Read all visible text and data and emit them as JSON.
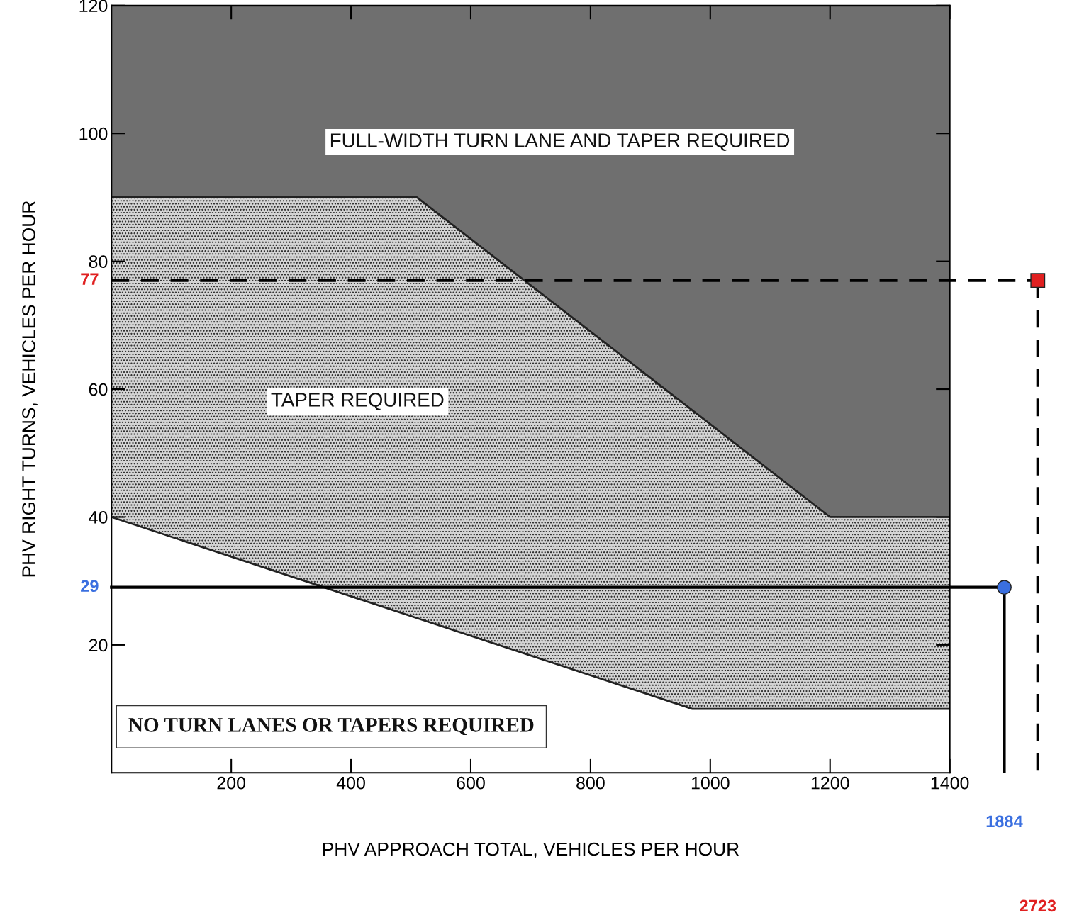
{
  "chart_data": {
    "type": "area",
    "stacked": true,
    "x": [
      0,
      510,
      970,
      1200,
      1400
    ],
    "series": [
      {
        "color": "#ffffff",
        "values": [
          40,
          24.2,
          10,
          10,
          10
        ]
      },
      {
        "color": "#d4d4d4",
        "values": [
          50,
          65.8,
          46.7,
          30,
          30
        ]
      },
      {
        "color": "#6f6f6f",
        "values": [
          30,
          30,
          63.3,
          80,
          80
        ]
      }
    ],
    "xlabel": "PHV APPROACH TOTAL, VEHICLES PER HOUR",
    "ylabel": "PHV RIGHT TURNS, VEHICLES PER HOUR",
    "xlim": [
      0,
      1400
    ],
    "xticks": [
      200,
      400,
      600,
      800,
      1000,
      1200,
      1400
    ],
    "ylim": [
      0,
      120
    ],
    "yticks": [
      20,
      40,
      60,
      80,
      100,
      120
    ],
    "grid": false,
    "ref_lines": [
      {
        "axis": "y",
        "value": 29,
        "label": "29",
        "color": "#000000",
        "line_style": "solid"
      },
      {
        "axis": "y",
        "value": 77,
        "label": "77",
        "color": "#000000",
        "line_style": "dashed"
      }
    ],
    "annotations": [
      "FULL-WIDTH TURN LANE AND TAPER REQUIRED",
      "TAPER REQUIRED",
      "NO TURN LANES OR TAPERS REQUIRED",
      "1884",
      "2723"
    ]
  }
}
